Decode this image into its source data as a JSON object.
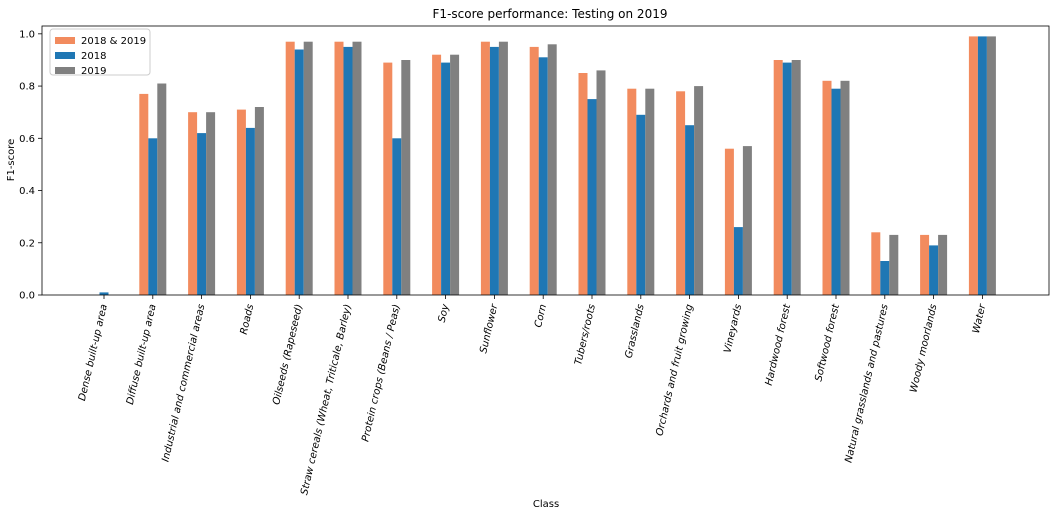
{
  "chart_data": {
    "type": "bar",
    "title": "F1-score performance: Testing on 2019",
    "xlabel": "Class",
    "ylabel": "F1-score",
    "ylim": [
      0,
      1.03
    ],
    "yticks": [
      "0.0",
      "0.2",
      "0.4",
      "0.6",
      "0.8",
      "1.0"
    ],
    "legend": "top-left",
    "grid": false,
    "categories": [
      "Dense built-up area",
      "Diffuse built-up area",
      "Industrial and commercial areas",
      "Roads",
      "Oilseeds (Rapeseed)",
      "Straw cereals (Wheat, Triticale, Barley)",
      "Protein crops (Beans / Peas)",
      "Soy",
      "Sunflower",
      "Corn",
      "Tubers/roots",
      "Grasslands",
      "Orchards and fruit growing",
      "Vineyards",
      "Hardwood forest",
      "Softwood forest",
      "Natural grasslands and pastures",
      "Woody moorlands",
      "Water"
    ],
    "series": [
      {
        "name": "2018 & 2019",
        "color": "#f28b5e",
        "values": [
          0.0,
          0.77,
          0.7,
          0.71,
          0.97,
          0.97,
          0.89,
          0.92,
          0.97,
          0.95,
          0.85,
          0.79,
          0.78,
          0.56,
          0.9,
          0.82,
          0.24,
          0.23,
          0.99
        ]
      },
      {
        "name": "2018",
        "color": "#1f77b4",
        "values": [
          0.01,
          0.6,
          0.62,
          0.64,
          0.94,
          0.95,
          0.6,
          0.89,
          0.95,
          0.91,
          0.75,
          0.69,
          0.65,
          0.26,
          0.89,
          0.79,
          0.13,
          0.19,
          0.99
        ]
      },
      {
        "name": "2019",
        "color": "#808080",
        "values": [
          0.0,
          0.81,
          0.7,
          0.72,
          0.97,
          0.97,
          0.9,
          0.92,
          0.97,
          0.96,
          0.86,
          0.79,
          0.8,
          0.57,
          0.9,
          0.82,
          0.23,
          0.23,
          0.99
        ]
      }
    ]
  }
}
